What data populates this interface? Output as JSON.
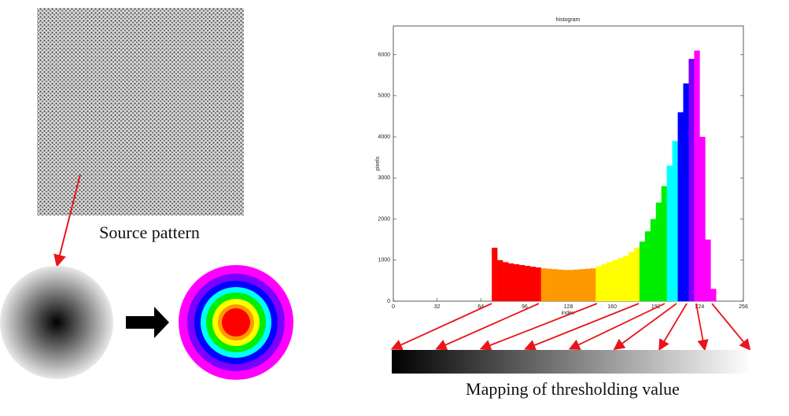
{
  "source_caption": "Source pattern",
  "mapping_caption": "Mapping of thresholding value",
  "chart_data": {
    "type": "histogram",
    "title": "histogram",
    "x_label": "index",
    "y_label": "pixels",
    "bins": [
      72,
      76,
      80,
      84,
      88,
      92,
      96,
      100,
      104,
      108,
      112,
      116,
      120,
      124,
      128,
      132,
      136,
      140,
      144,
      148,
      152,
      156,
      160,
      164,
      168,
      172,
      176,
      180,
      184,
      188,
      192,
      196,
      200,
      204,
      208,
      212,
      216,
      220,
      224,
      228,
      232,
      236
    ],
    "counts": [
      1300,
      1000,
      950,
      920,
      900,
      880,
      860,
      840,
      820,
      800,
      790,
      780,
      770,
      760,
      760,
      770,
      780,
      790,
      800,
      850,
      900,
      950,
      1000,
      1050,
      1100,
      1200,
      1300,
      1450,
      1700,
      2000,
      2400,
      2800,
      3300,
      3900,
      4600,
      5300,
      5900,
      6100,
      4000,
      1500,
      300
    ],
    "colors": [
      "#ff0000",
      "#ff0000",
      "#ff0000",
      "#ff0000",
      "#ff0000",
      "#ff0000",
      "#ff0000",
      "#ff0000",
      "#ff0000",
      "#ff9900",
      "#ff9900",
      "#ff9900",
      "#ff9900",
      "#ff9900",
      "#ff9900",
      "#ff9900",
      "#ff9900",
      "#ff9900",
      "#ff9900",
      "#ffff00",
      "#ffff00",
      "#ffff00",
      "#ffff00",
      "#ffff00",
      "#ffff00",
      "#ffff00",
      "#ffff00",
      "#00ee00",
      "#00ee00",
      "#00ee00",
      "#00ee00",
      "#00ee00",
      "#00ffff",
      "#00ffff",
      "#0000ff",
      "#0000ff",
      "#7a00ff",
      "#ff00ff",
      "#ff00ff",
      "#ff00ff",
      "#ff00ff"
    ],
    "xlim": [
      0,
      256
    ],
    "xticks": [
      0,
      32,
      64,
      96,
      128,
      160,
      192,
      224,
      256
    ],
    "ylim": [
      0,
      6700
    ],
    "yticks": [
      0,
      1000,
      2000,
      3000,
      4000,
      5000,
      6000
    ]
  }
}
